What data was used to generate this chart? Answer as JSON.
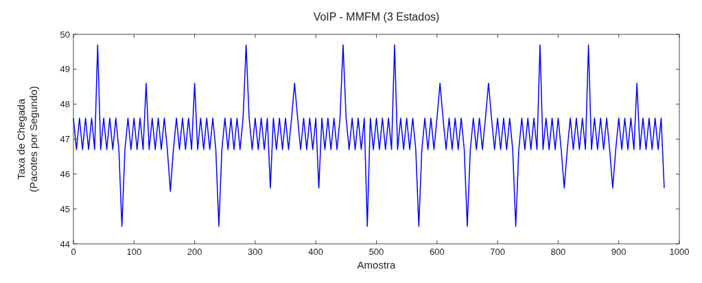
{
  "chart_data": {
    "type": "line",
    "title": "VoIP - MMFM (3 Estados)",
    "xlabel": "Amostra",
    "ylabel": "Taxa de Chegada\n(Pacotes por Segundo)",
    "x": [
      0,
      5,
      10,
      15,
      20,
      25,
      30,
      35,
      40,
      45,
      50,
      55,
      60,
      65,
      70,
      75,
      80,
      85,
      90,
      95,
      100,
      105,
      110,
      115,
      120,
      125,
      130,
      135,
      140,
      145,
      150,
      155,
      160,
      165,
      170,
      175,
      180,
      185,
      190,
      195,
      200,
      205,
      210,
      215,
      220,
      225,
      230,
      235,
      240,
      245,
      250,
      255,
      260,
      265,
      270,
      275,
      280,
      285,
      290,
      295,
      300,
      305,
      310,
      315,
      320,
      325,
      330,
      335,
      340,
      345,
      350,
      355,
      360,
      365,
      370,
      375,
      380,
      385,
      390,
      395,
      400,
      405,
      410,
      415,
      420,
      425,
      430,
      435,
      440,
      445,
      450,
      455,
      460,
      465,
      470,
      475,
      480,
      485,
      490,
      495,
      500,
      505,
      510,
      515,
      520,
      525,
      530,
      535,
      540,
      545,
      550,
      555,
      560,
      565,
      570,
      575,
      580,
      585,
      590,
      595,
      600,
      605,
      610,
      615,
      620,
      625,
      630,
      635,
      640,
      645,
      650,
      655,
      660,
      665,
      670,
      675,
      680,
      685,
      690,
      695,
      700,
      705,
      710,
      715,
      720,
      725,
      730,
      735,
      740,
      745,
      750,
      755,
      760,
      765,
      770,
      775,
      780,
      785,
      790,
      795,
      800,
      805,
      810,
      815,
      820,
      825,
      830,
      835,
      840,
      845,
      850,
      855,
      860,
      865,
      870,
      875,
      880,
      885,
      890,
      895,
      900,
      905,
      910,
      915,
      920,
      925,
      930,
      935,
      940,
      945,
      950,
      955,
      960,
      965,
      970,
      975
    ],
    "series": [
      {
        "color": "#0000ff",
        "values": [
          47.6,
          46.7,
          47.6,
          46.7,
          47.6,
          46.7,
          47.6,
          46.7,
          49.7,
          46.7,
          47.6,
          46.7,
          47.6,
          46.7,
          47.6,
          46.7,
          44.5,
          46.7,
          47.6,
          46.7,
          47.6,
          46.7,
          47.6,
          46.7,
          48.6,
          46.7,
          47.6,
          46.7,
          47.6,
          46.7,
          47.6,
          46.7,
          45.5,
          46.7,
          47.6,
          46.7,
          47.6,
          46.7,
          47.6,
          46.7,
          48.6,
          46.7,
          47.6,
          46.7,
          47.6,
          46.7,
          47.6,
          46.7,
          44.5,
          46.7,
          47.6,
          46.7,
          47.6,
          46.7,
          47.6,
          46.7,
          47.6,
          49.7,
          47.6,
          46.7,
          47.6,
          46.7,
          47.6,
          46.7,
          47.6,
          45.6,
          47.6,
          46.7,
          47.6,
          46.7,
          47.6,
          46.7,
          47.6,
          48.6,
          47.6,
          46.7,
          47.6,
          46.7,
          47.6,
          46.7,
          47.6,
          45.6,
          47.6,
          46.7,
          47.6,
          46.7,
          47.6,
          46.7,
          47.6,
          49.7,
          47.6,
          46.7,
          47.6,
          46.7,
          47.6,
          46.7,
          47.6,
          44.5,
          47.6,
          46.7,
          47.6,
          46.7,
          47.6,
          46.7,
          47.6,
          46.7,
          49.7,
          46.7,
          47.6,
          46.7,
          47.6,
          46.7,
          47.6,
          46.7,
          44.5,
          46.7,
          47.6,
          46.7,
          47.6,
          46.7,
          47.6,
          48.6,
          47.6,
          46.7,
          47.6,
          46.7,
          47.6,
          46.7,
          47.6,
          46.7,
          44.5,
          46.7,
          47.6,
          46.7,
          47.6,
          46.7,
          47.6,
          48.6,
          47.6,
          46.7,
          47.6,
          46.7,
          47.6,
          46.7,
          47.6,
          46.7,
          44.5,
          46.7,
          47.6,
          46.7,
          47.6,
          46.7,
          47.6,
          46.7,
          49.7,
          46.7,
          47.6,
          46.7,
          47.6,
          46.7,
          47.6,
          46.7,
          45.6,
          46.7,
          47.6,
          46.7,
          47.6,
          46.7,
          47.6,
          46.7,
          49.7,
          46.7,
          47.6,
          46.7,
          47.6,
          46.7,
          47.6,
          46.7,
          45.6,
          46.7,
          47.6,
          46.7,
          47.6,
          46.7,
          47.6,
          46.7,
          48.6,
          46.7,
          47.6,
          46.7,
          47.6,
          46.7,
          47.6,
          46.7,
          47.6,
          45.6
        ]
      }
    ],
    "xlim": [
      0,
      1000
    ],
    "xticks": [
      0,
      100,
      200,
      300,
      400,
      500,
      600,
      700,
      800,
      900,
      1000
    ],
    "ylim": [
      44,
      50
    ],
    "yticks": [
      44,
      45,
      46,
      47,
      48,
      49,
      50
    ],
    "grid": false,
    "marker": "none",
    "line_style": "solid"
  }
}
